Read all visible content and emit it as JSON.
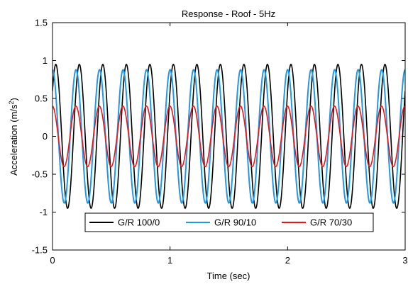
{
  "chart_data": {
    "type": "line",
    "title": "Response - Roof - 5Hz",
    "xlabel": "Time (sec)",
    "ylabel_main": "Acceleration (m/s",
    "ylabel_sup": "2",
    "ylabel_close": ")",
    "xlim": [
      0,
      3
    ],
    "ylim": [
      -1.5,
      1.5
    ],
    "x_ticks": [
      0,
      1,
      2,
      3
    ],
    "x_tick_labels": [
      "0",
      "1",
      "2",
      "3"
    ],
    "y_ticks": [
      -1.5,
      -1,
      -0.5,
      0,
      0.5,
      1,
      1.5
    ],
    "y_tick_labels": [
      "-1.5",
      "-1",
      "-0.5",
      "0",
      "0.5",
      "1",
      "1.5"
    ],
    "grid": false,
    "legend_position": "bottom-center",
    "series": [
      {
        "name": "G/R 100/0",
        "color": "#000000",
        "frequency_hz": 5,
        "amplitude": 0.95,
        "initial_value": 0.6,
        "peak_time_offset": 0.2
      },
      {
        "name": "G/R 90/10",
        "color": "#1e9be8",
        "frequency_hz": 5,
        "amplitude": 0.88,
        "initial_value": 0.95,
        "peak_time_offset": 0.0
      },
      {
        "name": "G/R 70/30",
        "color": "#e8151b",
        "frequency_hz": 5,
        "amplitude": 0.4,
        "initial_value": 0.38,
        "peak_time_offset": 0.0
      }
    ]
  }
}
